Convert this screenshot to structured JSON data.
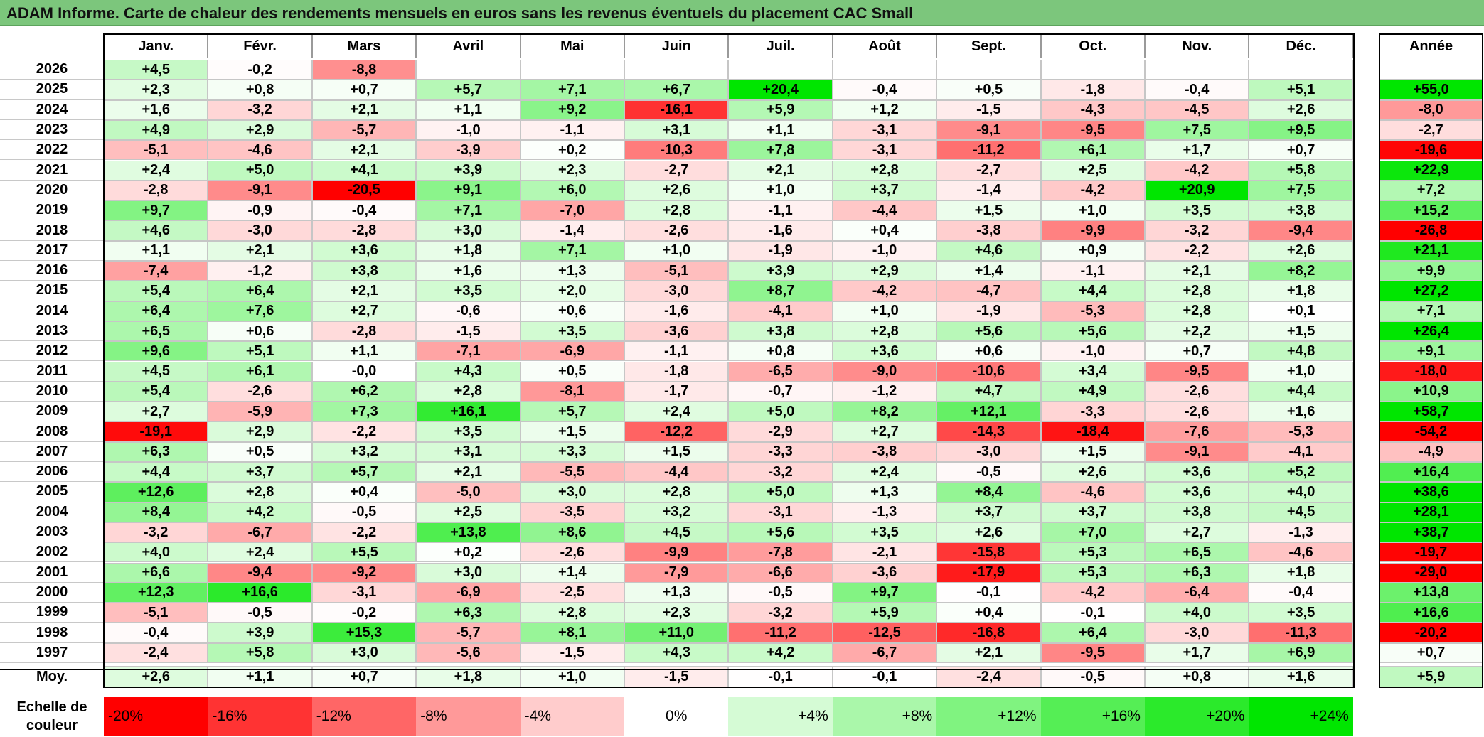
{
  "title": "ADAM Informe. Carte de chaleur des rendements mensuels en euros sans les revenus éventuels du placement CAC Small",
  "chart_data": {
    "type": "heatmap",
    "title": "ADAM Informe. Carte de chaleur des rendements mensuels en euros sans les revenus éventuels du placement CAC Small",
    "months": [
      "Janv.",
      "Févr.",
      "Mars",
      "Avril",
      "Mai",
      "Juin",
      "Juil.",
      "Août",
      "Sept.",
      "Oct.",
      "Nov.",
      "Déc."
    ],
    "year_header": "Année",
    "rows": [
      {
        "year": "2026",
        "values": [
          4.5,
          -0.2,
          -8.8,
          null,
          null,
          null,
          null,
          null,
          null,
          null,
          null,
          null
        ],
        "annual": null
      },
      {
        "year": "2025",
        "values": [
          2.3,
          0.8,
          0.7,
          5.7,
          7.1,
          6.7,
          20.4,
          -0.4,
          0.5,
          -1.8,
          -0.4,
          5.1
        ],
        "annual": 55.0
      },
      {
        "year": "2024",
        "values": [
          1.6,
          -3.2,
          2.1,
          1.1,
          9.2,
          -16.1,
          5.9,
          1.2,
          -1.5,
          -4.3,
          -4.5,
          2.6
        ],
        "annual": -8.0
      },
      {
        "year": "2023",
        "values": [
          4.9,
          2.9,
          -5.7,
          -1.0,
          -1.1,
          3.1,
          1.1,
          -3.1,
          -9.1,
          -9.5,
          7.5,
          9.5
        ],
        "annual": -2.7
      },
      {
        "year": "2022",
        "values": [
          -5.1,
          -4.6,
          2.1,
          -3.9,
          0.2,
          -10.3,
          7.8,
          -3.1,
          -11.2,
          6.1,
          1.7,
          0.7
        ],
        "annual": -19.6
      },
      {
        "year": "2021",
        "values": [
          2.4,
          5.0,
          4.1,
          3.9,
          2.3,
          -2.7,
          2.1,
          2.8,
          -2.7,
          2.5,
          -4.2,
          5.8
        ],
        "annual": 22.9
      },
      {
        "year": "2020",
        "values": [
          -2.8,
          -9.1,
          -20.5,
          9.1,
          6.0,
          2.6,
          1.0,
          3.7,
          -1.4,
          -4.2,
          20.9,
          7.5
        ],
        "annual": 7.2
      },
      {
        "year": "2019",
        "values": [
          9.7,
          -0.9,
          -0.4,
          7.1,
          -7.0,
          2.8,
          -1.1,
          -4.4,
          1.5,
          1.0,
          3.5,
          3.8
        ],
        "annual": 15.2
      },
      {
        "year": "2018",
        "values": [
          4.6,
          -3.0,
          -2.8,
          3.0,
          -1.4,
          -2.6,
          -1.6,
          0.4,
          -3.8,
          -9.9,
          -3.2,
          -9.4
        ],
        "annual": -26.8
      },
      {
        "year": "2017",
        "values": [
          1.1,
          2.1,
          3.6,
          1.8,
          7.1,
          1.0,
          -1.9,
          -1.0,
          4.6,
          0.9,
          -2.2,
          2.6
        ],
        "annual": 21.1
      },
      {
        "year": "2016",
        "values": [
          -7.4,
          -1.2,
          3.8,
          1.6,
          1.3,
          -5.1,
          3.9,
          2.9,
          1.4,
          -1.1,
          2.1,
          8.2
        ],
        "annual": 9.9
      },
      {
        "year": "2015",
        "values": [
          5.4,
          6.4,
          2.1,
          3.5,
          2.0,
          -3.0,
          8.7,
          -4.2,
          -4.7,
          4.4,
          2.8,
          1.8
        ],
        "annual": 27.2
      },
      {
        "year": "2014",
        "values": [
          6.4,
          7.6,
          2.7,
          -0.6,
          0.6,
          -1.6,
          -4.1,
          1.0,
          -1.9,
          -5.3,
          2.8,
          0.1
        ],
        "annual": 7.1
      },
      {
        "year": "2013",
        "values": [
          6.5,
          0.6,
          -2.8,
          -1.5,
          3.5,
          -3.6,
          3.8,
          2.8,
          5.6,
          5.6,
          2.2,
          1.5
        ],
        "annual": 26.4
      },
      {
        "year": "2012",
        "values": [
          9.6,
          5.1,
          1.1,
          -7.1,
          -6.9,
          -1.1,
          0.8,
          3.6,
          0.6,
          -1.0,
          0.7,
          4.8
        ],
        "annual": 9.1
      },
      {
        "year": "2011",
        "values": [
          4.5,
          6.1,
          -0.0,
          4.3,
          0.5,
          -1.8,
          -6.5,
          -9.0,
          -10.6,
          3.4,
          -9.5,
          1.0
        ],
        "annual": -18.0
      },
      {
        "year": "2010",
        "values": [
          5.4,
          -2.6,
          6.2,
          2.8,
          -8.1,
          -1.7,
          -0.7,
          -1.2,
          4.7,
          4.9,
          -2.6,
          4.4
        ],
        "annual": 10.9
      },
      {
        "year": "2009",
        "values": [
          2.7,
          -5.9,
          7.3,
          16.1,
          5.7,
          2.4,
          5.0,
          8.2,
          12.1,
          -3.3,
          -2.6,
          1.6
        ],
        "annual": 58.7
      },
      {
        "year": "2008",
        "values": [
          -19.1,
          2.9,
          -2.2,
          3.5,
          1.5,
          -12.2,
          -2.9,
          2.7,
          -14.3,
          -18.4,
          -7.6,
          -5.3
        ],
        "annual": -54.2
      },
      {
        "year": "2007",
        "values": [
          6.3,
          0.5,
          3.2,
          3.1,
          3.3,
          1.5,
          -3.3,
          -3.8,
          -3.0,
          1.5,
          -9.1,
          -4.1
        ],
        "annual": -4.9
      },
      {
        "year": "2006",
        "values": [
          4.4,
          3.7,
          5.7,
          2.1,
          -5.5,
          -4.4,
          -3.2,
          2.4,
          -0.5,
          2.6,
          3.6,
          5.2
        ],
        "annual": 16.4
      },
      {
        "year": "2005",
        "values": [
          12.6,
          2.8,
          0.4,
          -5.0,
          3.0,
          2.8,
          5.0,
          1.3,
          8.4,
          -4.6,
          3.6,
          4.0
        ],
        "annual": 38.6
      },
      {
        "year": "2004",
        "values": [
          8.4,
          4.2,
          -0.5,
          2.5,
          -3.5,
          3.2,
          -3.1,
          -1.3,
          3.7,
          3.7,
          3.8,
          4.5
        ],
        "annual": 28.1
      },
      {
        "year": "2003",
        "values": [
          -3.2,
          -6.7,
          -2.2,
          13.8,
          8.6,
          4.5,
          5.6,
          3.5,
          2.6,
          7.0,
          2.7,
          -1.3
        ],
        "annual": 38.7
      },
      {
        "year": "2002",
        "values": [
          4.0,
          2.4,
          5.5,
          0.2,
          -2.6,
          -9.9,
          -7.8,
          -2.1,
          -15.8,
          5.3,
          6.5,
          -4.6
        ],
        "annual": -19.7
      },
      {
        "year": "2001",
        "values": [
          6.6,
          -9.4,
          -9.2,
          3.0,
          1.4,
          -7.9,
          -6.6,
          -3.6,
          -17.9,
          5.3,
          6.3,
          1.8
        ],
        "annual": -29.0
      },
      {
        "year": "2000",
        "values": [
          12.3,
          16.6,
          -3.1,
          -6.9,
          -2.5,
          1.3,
          -0.5,
          9.7,
          -0.1,
          -4.2,
          -6.4,
          -0.4
        ],
        "annual": 13.8
      },
      {
        "year": "1999",
        "values": [
          -5.1,
          -0.5,
          -0.2,
          6.3,
          2.8,
          2.3,
          -3.2,
          5.9,
          0.4,
          -0.1,
          4.0,
          3.5
        ],
        "annual": 16.6
      },
      {
        "year": "1998",
        "values": [
          -0.4,
          3.9,
          15.3,
          -5.7,
          8.1,
          11.0,
          -11.2,
          -12.5,
          -16.8,
          6.4,
          -3.0,
          -11.3
        ],
        "annual": -20.2
      },
      {
        "year": "1997",
        "values": [
          -2.4,
          5.8,
          3.0,
          -5.6,
          -1.5,
          4.3,
          4.2,
          -6.7,
          2.1,
          -9.5,
          1.7,
          6.9
        ],
        "annual": 0.7
      }
    ],
    "average": {
      "label": "Moy.",
      "values": [
        2.6,
        1.1,
        0.7,
        1.8,
        1.0,
        -1.5,
        -0.1,
        -0.1,
        -2.4,
        -0.5,
        0.8,
        1.6
      ],
      "annual": 5.9
    },
    "scale": {
      "label": "Echelle de couleur",
      "steps": [
        {
          "label": "-20%",
          "value": -20
        },
        {
          "label": "-16%",
          "value": -16
        },
        {
          "label": "-12%",
          "value": -12
        },
        {
          "label": "-8%",
          "value": -8
        },
        {
          "label": "-4%",
          "value": -4
        },
        {
          "label": "0%",
          "value": 0
        },
        {
          "label": "+4%",
          "value": 4
        },
        {
          "label": "+8%",
          "value": 8
        },
        {
          "label": "+12%",
          "value": 12
        },
        {
          "label": "+16%",
          "value": 16
        },
        {
          "label": "+20%",
          "value": 20
        },
        {
          "label": "+24%",
          "value": 24
        }
      ]
    },
    "colors": {
      "negative": "#ff0000",
      "neutral": "#ffffff",
      "positive": "#00e600",
      "title_bg": "#7cc67c"
    }
  }
}
